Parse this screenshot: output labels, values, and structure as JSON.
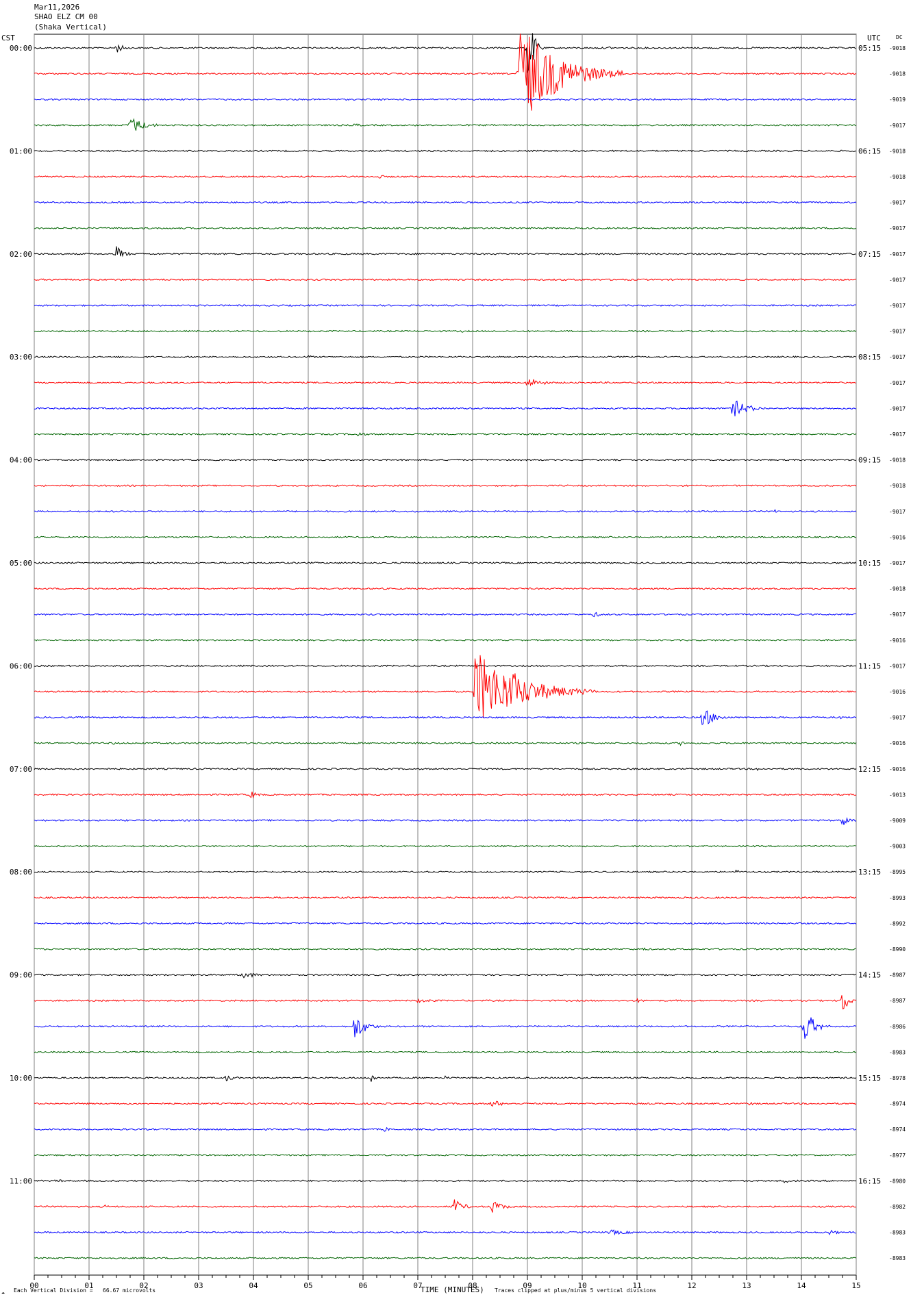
{
  "header": {
    "date": "Mar11,2026",
    "station": "SHAO ELZ CM 00",
    "location": "(Shaka Vertical)"
  },
  "axis_labels": {
    "left_zone": "CST",
    "right_zone": "UTC",
    "dc": "DC"
  },
  "footer": {
    "division": "Each Vertical Division =   66.67 microvolts",
    "xlabel": "TIME (MINUTES)",
    "clip": "Traces clipped at plus/minus 5 vertical divisions",
    "logo": "☁"
  },
  "colors": {
    "traces": [
      "#000000",
      "#ff0000",
      "#0000ff",
      "#006400"
    ],
    "grid": "#808080"
  },
  "chart_data": {
    "type": "line",
    "title": "Mar11,2026 SHAO ELZ CM 00 (Shaka Vertical)",
    "xlabel": "TIME (MINUTES)",
    "ylabel": "",
    "xlim": [
      0,
      15
    ],
    "x_ticks": [
      "00",
      "01",
      "02",
      "03",
      "04",
      "05",
      "06",
      "07",
      "08",
      "09",
      "10",
      "11",
      "12",
      "13",
      "14",
      "15"
    ],
    "grid": true,
    "trace_count": 48,
    "trace_minutes": 15,
    "left_time_labels": [
      "00:00",
      "01:00",
      "02:00",
      "03:00",
      "04:00",
      "05:00",
      "06:00",
      "07:00",
      "08:00",
      "09:00",
      "10:00",
      "11:00"
    ],
    "right_time_labels": [
      "05:15",
      "06:15",
      "07:15",
      "08:15",
      "09:15",
      "10:15",
      "11:15",
      "12:15",
      "13:15",
      "14:15",
      "15:15",
      "16:15"
    ],
    "dc_values": [
      "-9018",
      "-9018",
      "-9019",
      "-9017",
      "-9018",
      "-9018",
      "-9017",
      "-9017",
      "-9017",
      "-9017",
      "-9017",
      "-9017",
      "-9017",
      "-9017",
      "-9017",
      "-9017",
      "-9018",
      "-9018",
      "-9017",
      "-9016",
      "-9017",
      "-9018",
      "-9017",
      "-9016",
      "-9017",
      "-9016",
      "-9017",
      "-9016",
      "-9016",
      "-9013",
      "-9009",
      "-9003",
      "-8995",
      "-8993",
      "-8992",
      "-8990",
      "-8987",
      "-8987",
      "-8986",
      "-8983",
      "-8978",
      "-8974",
      "-8974",
      "-8977",
      "-8980",
      "-8982",
      "-8983",
      "-8983"
    ],
    "events": [
      {
        "trace": 0,
        "minute": 1.5,
        "amp": 8,
        "dur": 0.4
      },
      {
        "trace": 0,
        "minute": 9.0,
        "amp": 60,
        "dur": 0.3
      },
      {
        "trace": 0,
        "minute": 10.5,
        "amp": 3,
        "dur": 0.15
      },
      {
        "trace": 1,
        "minute": 8.85,
        "amp": 80,
        "dur": 1.9
      },
      {
        "trace": 1,
        "minute": 9.25,
        "amp": 25,
        "dur": 0.5
      },
      {
        "trace": 3,
        "minute": 1.75,
        "amp": 14,
        "dur": 0.7
      },
      {
        "trace": 3,
        "minute": 5.85,
        "amp": 3,
        "dur": 0.5
      },
      {
        "trace": 5,
        "minute": 6.3,
        "amp": 3,
        "dur": 0.4
      },
      {
        "trace": 8,
        "minute": 1.5,
        "amp": 12,
        "dur": 0.4
      },
      {
        "trace": 8,
        "minute": 10.8,
        "amp": 2,
        "dur": 0.2
      },
      {
        "trace": 9,
        "minute": 11.7,
        "amp": 3,
        "dur": 0.3
      },
      {
        "trace": 11,
        "minute": 7.8,
        "amp": 2,
        "dur": 0.3
      },
      {
        "trace": 12,
        "minute": 5.0,
        "amp": 3,
        "dur": 0.3
      },
      {
        "trace": 13,
        "minute": 9.0,
        "amp": 8,
        "dur": 0.8
      },
      {
        "trace": 14,
        "minute": 12.75,
        "amp": 14,
        "dur": 0.8
      },
      {
        "trace": 15,
        "minute": 5.9,
        "amp": 4,
        "dur": 0.5
      },
      {
        "trace": 18,
        "minute": 13.5,
        "amp": 3,
        "dur": 0.3
      },
      {
        "trace": 22,
        "minute": 10.2,
        "amp": 4,
        "dur": 0.6
      },
      {
        "trace": 22,
        "minute": 11.1,
        "amp": 2,
        "dur": 0.3
      },
      {
        "trace": 25,
        "minute": 8.05,
        "amp": 60,
        "dur": 2.2
      },
      {
        "trace": 25,
        "minute": 8.7,
        "amp": 36,
        "dur": 0.8
      },
      {
        "trace": 26,
        "minute": 12.2,
        "amp": 16,
        "dur": 0.6
      },
      {
        "trace": 26,
        "minute": 14.7,
        "amp": 3,
        "dur": 0.4
      },
      {
        "trace": 27,
        "minute": 1.4,
        "amp": 3,
        "dur": 0.4
      },
      {
        "trace": 27,
        "minute": 11.8,
        "amp": 4,
        "dur": 0.3
      },
      {
        "trace": 28,
        "minute": 13.2,
        "amp": 3,
        "dur": 0.3
      },
      {
        "trace": 29,
        "minute": 3.95,
        "amp": 6,
        "dur": 0.4
      },
      {
        "trace": 30,
        "minute": 14.75,
        "amp": 10,
        "dur": 0.3
      },
      {
        "trace": 32,
        "minute": 12.8,
        "amp": 4,
        "dur": 0.2
      },
      {
        "trace": 35,
        "minute": 11.1,
        "amp": 3,
        "dur": 0.4
      },
      {
        "trace": 36,
        "minute": 3.8,
        "amp": 6,
        "dur": 0.7
      },
      {
        "trace": 37,
        "minute": 7.0,
        "amp": 3,
        "dur": 1.3
      },
      {
        "trace": 37,
        "minute": 11.0,
        "amp": 3,
        "dur": 0.5
      },
      {
        "trace": 37,
        "minute": 14.75,
        "amp": 20,
        "dur": 0.3
      },
      {
        "trace": 38,
        "minute": 5.85,
        "amp": 22,
        "dur": 0.5
      },
      {
        "trace": 38,
        "minute": 14.05,
        "amp": 28,
        "dur": 0.5
      },
      {
        "trace": 40,
        "minute": 3.5,
        "amp": 5,
        "dur": 0.5
      },
      {
        "trace": 40,
        "minute": 6.15,
        "amp": 8,
        "dur": 0.2
      },
      {
        "trace": 40,
        "minute": 7.5,
        "amp": 3,
        "dur": 0.2
      },
      {
        "trace": 41,
        "minute": 8.35,
        "amp": 6,
        "dur": 0.6
      },
      {
        "trace": 41,
        "minute": 13.05,
        "amp": 4,
        "dur": 0.2
      },
      {
        "trace": 42,
        "minute": 6.4,
        "amp": 4,
        "dur": 0.3
      },
      {
        "trace": 44,
        "minute": 0.4,
        "amp": 4,
        "dur": 0.3
      },
      {
        "trace": 44,
        "minute": 13.7,
        "amp": 6,
        "dur": 0.15
      },
      {
        "trace": 45,
        "minute": 1.3,
        "amp": 3,
        "dur": 0.3
      },
      {
        "trace": 45,
        "minute": 7.65,
        "amp": 12,
        "dur": 0.5
      },
      {
        "trace": 45,
        "minute": 8.35,
        "amp": 10,
        "dur": 0.6
      },
      {
        "trace": 46,
        "minute": 10.5,
        "amp": 4,
        "dur": 1.2
      },
      {
        "trace": 46,
        "minute": 14.5,
        "amp": 4,
        "dur": 0.6
      },
      {
        "trace": 47,
        "minute": 12.8,
        "amp": 2,
        "dur": 0.3
      }
    ]
  }
}
